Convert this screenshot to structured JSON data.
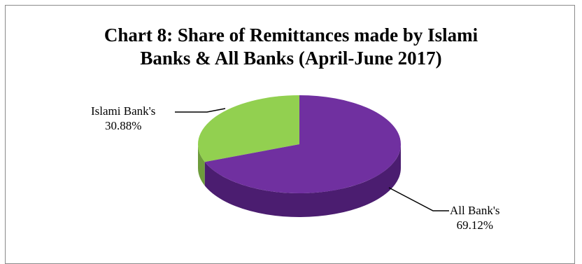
{
  "chart_data": {
    "type": "pie",
    "title_lines": [
      "Chart 8: Share of Remittances made by Islami",
      "Banks & All Banks (April-June 2017)"
    ],
    "slices": [
      {
        "label": "Islami Bank's",
        "value": 30.88,
        "value_label": "30.88%",
        "color": "#92d050",
        "side_color": "#6e9c3c"
      },
      {
        "label": "All Bank's",
        "value": 69.12,
        "value_label": "69.12%",
        "color": "#7030a0",
        "side_color": "#4b1d70"
      }
    ],
    "legend": "none",
    "style": "3d-pie"
  }
}
